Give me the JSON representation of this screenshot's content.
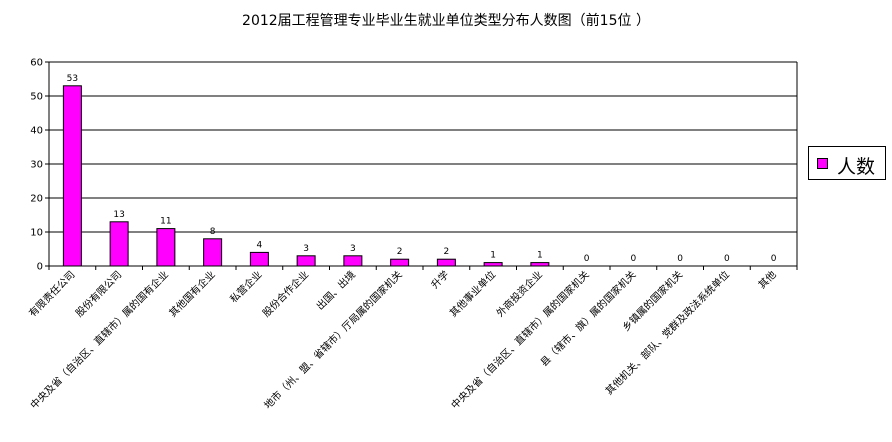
{
  "chart_data": {
    "type": "bar",
    "title": "2012届工程管理专业毕业生就业单位类型分布人数图（前15位 ）",
    "xlabel": "",
    "ylabel": "",
    "ylim": [
      0,
      60
    ],
    "yticks": [
      0,
      10,
      20,
      30,
      40,
      50,
      60
    ],
    "grid": true,
    "legend_position": "right",
    "bar_color": "#FF00FF",
    "categories": [
      "有限责任公司",
      "股份有限公司",
      "中央及省（自治区、直辖市）属的国有企业",
      "其他国有企业",
      "私营企业",
      "股份合作企业",
      "出国、出境",
      "地市（州、盟、省辖市）厅局属的国家机关",
      "升学",
      "其他事业单位",
      "外商投资企业",
      "中央及省（自治区、直辖市）属的国家机关",
      "县（辖市、旗）属的国家机关",
      "乡镇属的国家机关",
      "其他机关、部队、党群及政法系统单位",
      "其他"
    ],
    "series": [
      {
        "name": "人数",
        "values": [
          53,
          13,
          11,
          8,
          4,
          3,
          3,
          2,
          2,
          1,
          1,
          0,
          0,
          0,
          0,
          0
        ]
      }
    ]
  }
}
